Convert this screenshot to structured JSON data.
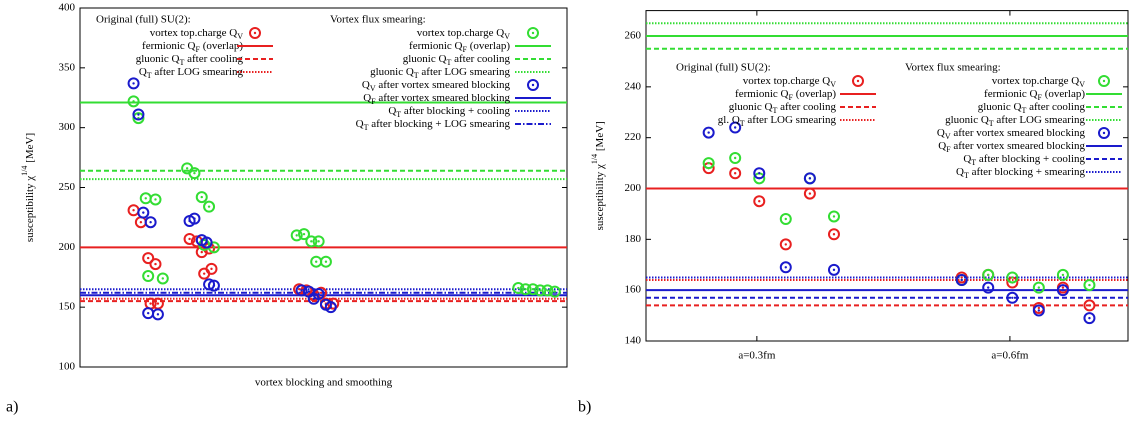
{
  "chart_data": [
    {
      "type": "scatter",
      "panel_label": "a)",
      "ylabel": [
        "susceptibility χ",
        "1/4",
        " [MeV]"
      ],
      "xlabel": "vortex blocking and smoothing",
      "ylim": [
        100,
        400
      ],
      "yticks": [
        100,
        150,
        200,
        250,
        300,
        350,
        400
      ],
      "xlim": [
        0,
        100
      ],
      "groups": [
        {
          "title": "Original (full) SU(2):",
          "series": [
            {
              "name": [
                "vortex top.charge Q",
                "V"
              ],
              "color": "#e82020",
              "x": [
                11,
                12.5,
                14,
                15.5,
                14.5,
                16,
                22.5,
                24,
                25,
                26.5,
                25.5,
                27,
                45,
                46.5,
                48,
                49.5,
                50.5,
                52
              ],
              "values": [
                231,
                221,
                191,
                186,
                153,
                153,
                207,
                205,
                196,
                199,
                178,
                182,
                165,
                164,
                160,
                162,
                153,
                153
              ],
              "lines": [
                {
                  "name": [
                    "fermionic Q",
                    "F",
                    " (overlap)"
                  ],
                  "value": 200,
                  "style": "solid"
                },
                {
                  "name": [
                    "gluonic Q",
                    "T",
                    " after cooling"
                  ],
                  "value": 155,
                  "style": "dashed"
                },
                {
                  "name": [
                    "Q",
                    "T",
                    " after LOG smearing"
                  ],
                  "value": 157,
                  "style": "dotted"
                }
              ]
            }
          ]
        },
        {
          "title": "Vortex flux smearing:",
          "series": [
            {
              "name": [
                "vortex top.charge Q",
                "V"
              ],
              "color": "#33dd33",
              "x": [
                11,
                12,
                13.5,
                15.5,
                14,
                17,
                22,
                23.5,
                25,
                26.5,
                25.5,
                27.5,
                44.5,
                46,
                47.5,
                49,
                48.5,
                50.5,
                90,
                91.5,
                93,
                94.5,
                96,
                97.5
              ],
              "values": [
                322,
                308,
                241,
                240,
                176,
                174,
                266,
                262,
                242,
                234,
                202,
                200,
                210,
                211,
                205,
                205,
                188,
                188,
                166,
                165,
                165,
                164,
                164,
                163
              ],
              "lines": [
                {
                  "name": [
                    "fermionic Q",
                    "F",
                    " (overlap)"
                  ],
                  "value": 321,
                  "style": "solid"
                },
                {
                  "name": [
                    "gluonic Q",
                    "T",
                    " after cooling"
                  ],
                  "value": 264,
                  "style": "dashed"
                },
                {
                  "name": [
                    "gluonic Q",
                    "T",
                    " after LOG smearing"
                  ],
                  "value": 257,
                  "style": "dotted"
                }
              ]
            },
            {
              "name": [
                "Q",
                "V",
                " after vortex smeared blocking"
              ],
              "color": "#1a1acc",
              "x": [
                11,
                12,
                13,
                14.5,
                14,
                16,
                22.5,
                23.5,
                25,
                26,
                26.5,
                27.5,
                45.5,
                47,
                48,
                49,
                50.5,
                51.5
              ],
              "values": [
                337,
                311,
                229,
                221,
                145,
                144,
                222,
                224,
                206,
                204,
                169,
                168,
                164,
                163,
                157,
                161,
                152,
                150
              ],
              "lines": [
                {
                  "name": [
                    "Q",
                    "F",
                    " after vortex smeared blocking"
                  ],
                  "value": 160,
                  "style": "solid"
                },
                {
                  "name": [
                    "Q",
                    "T",
                    " after blocking + cooling"
                  ],
                  "value": 165,
                  "style": "dotted"
                },
                {
                  "name": [
                    "Q",
                    "T",
                    " after blocking + LOG smearing"
                  ],
                  "value": 162,
                  "style": "dashdot"
                }
              ]
            }
          ]
        }
      ]
    },
    {
      "type": "scatter",
      "panel_label": "b)",
      "ylabel": [
        "susceptibility χ",
        "1/4",
        " [MeV]"
      ],
      "ylim": [
        140,
        270
      ],
      "yticks": [
        140,
        160,
        180,
        200,
        220,
        240,
        260
      ],
      "xlim": [
        0,
        100
      ],
      "xticks": [
        {
          "value": 23,
          "label": "a=0.3fm"
        },
        {
          "value": 75.5,
          "label": "a=0.6fm"
        }
      ],
      "groups": [
        {
          "title": "Original (full) SU(2):",
          "series": [
            {
              "name": [
                "vortex top.charge Q",
                "V"
              ],
              "color": "#e82020",
              "x": [
                13,
                18.5,
                23.5,
                29,
                34,
                39,
                65.5,
                71,
                76,
                81.5,
                86.5,
                92
              ],
              "values": [
                208,
                206,
                195,
                178,
                198,
                182,
                165,
                166,
                163,
                153,
                161,
                154
              ],
              "lines": [
                {
                  "name": [
                    "fermionic Q",
                    "F",
                    " (overlap)"
                  ],
                  "value": 200,
                  "style": "solid"
                },
                {
                  "name": [
                    "gluonic Q",
                    "T",
                    " after cooling"
                  ],
                  "value": 154,
                  "style": "dashed"
                },
                {
                  "name": [
                    "gl. Q",
                    "T",
                    " after LOG smearing"
                  ],
                  "value": 164,
                  "style": "dotted"
                }
              ]
            }
          ]
        },
        {
          "title": "Vortex flux smearing:",
          "series": [
            {
              "name": [
                "vortex top.charge Q",
                "V"
              ],
              "color": "#33dd33",
              "x": [
                13,
                18.5,
                23.5,
                29,
                34,
                39,
                65.5,
                71,
                76,
                81.5,
                86.5,
                92
              ],
              "values": [
                210,
                212,
                204,
                188,
                204,
                189,
                164,
                166,
                165,
                161,
                166,
                162
              ],
              "lines": [
                {
                  "name": [
                    "fermionic Q",
                    "F",
                    " (overlap)"
                  ],
                  "value": 260,
                  "style": "solid"
                },
                {
                  "name": [
                    "gluonic Q",
                    "T",
                    " after cooling"
                  ],
                  "value": 255,
                  "style": "dashed"
                },
                {
                  "name": [
                    "gluonic Q",
                    "T",
                    " after LOG smearing"
                  ],
                  "value": 265,
                  "style": "dotted"
                }
              ]
            },
            {
              "name": [
                "Q",
                "V",
                " after vortex smeared blocking"
              ],
              "color": "#1a1acc",
              "x": [
                13,
                18.5,
                23.5,
                29,
                34,
                39,
                65.5,
                71,
                76,
                81.5,
                86.5,
                92
              ],
              "values": [
                222,
                224,
                206,
                169,
                204,
                168,
                164,
                161,
                157,
                152,
                160,
                149
              ],
              "lines": [
                {
                  "name": [
                    "Q",
                    "F",
                    " after vortex smeared blocking"
                  ],
                  "value": 160,
                  "style": "solid"
                },
                {
                  "name": [
                    "Q",
                    "T",
                    " after blocking + cooling"
                  ],
                  "value": 157,
                  "style": "dashed"
                },
                {
                  "name": [
                    "Q",
                    "T",
                    " after blocking + smearing"
                  ],
                  "value": 165,
                  "style": "dotted"
                }
              ]
            }
          ]
        }
      ]
    }
  ]
}
